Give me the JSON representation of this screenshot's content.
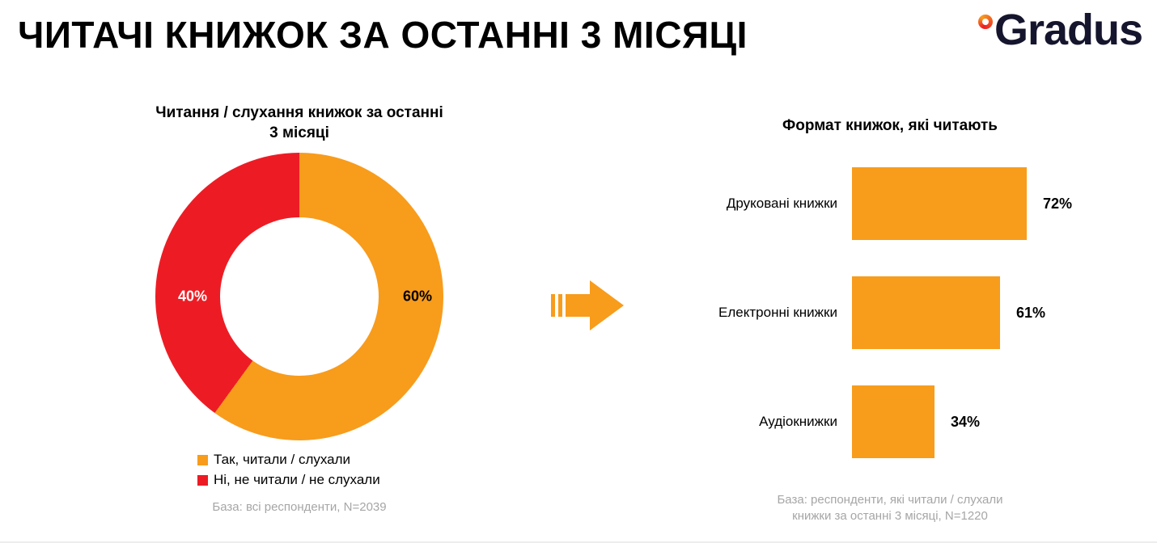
{
  "title": "ЧИТАЧІ КНИЖОК ЗА ОСТАННІ 3 МІСЯЦІ",
  "logo": {
    "text": "Gradus"
  },
  "colors": {
    "orange": "#F89C1C",
    "red": "#ED1C24",
    "note_gray": "#A6A6A6"
  },
  "chart_data": [
    {
      "type": "pie",
      "donut": true,
      "title": "Читання / слухання книжок за останні 3 місяці",
      "labels": [
        "Так, читали / слухали",
        "Ні, не читали / не слухали"
      ],
      "values": [
        60,
        40
      ],
      "value_labels": [
        "60%",
        "40%"
      ],
      "colors": [
        "#F89C1C",
        "#ED1C24"
      ],
      "start_angle_deg": 0,
      "legend_position": "bottom-left",
      "note": "База: всі респонденти, N=2039"
    },
    {
      "type": "bar",
      "orientation": "horizontal",
      "title": "Формат книжок, які читають",
      "categories": [
        "Друковані книжки",
        "Електронні книжки",
        "Аудіокнижки"
      ],
      "values": [
        72,
        61,
        34
      ],
      "value_labels": [
        "72%",
        "61%",
        "34%"
      ],
      "color": "#F89C1C",
      "xlim": [
        0,
        100
      ],
      "grid": false,
      "note_lines": [
        "База: респонденти, які читали / слухали",
        "книжки за останні 3 місяці, N=1220"
      ]
    }
  ]
}
